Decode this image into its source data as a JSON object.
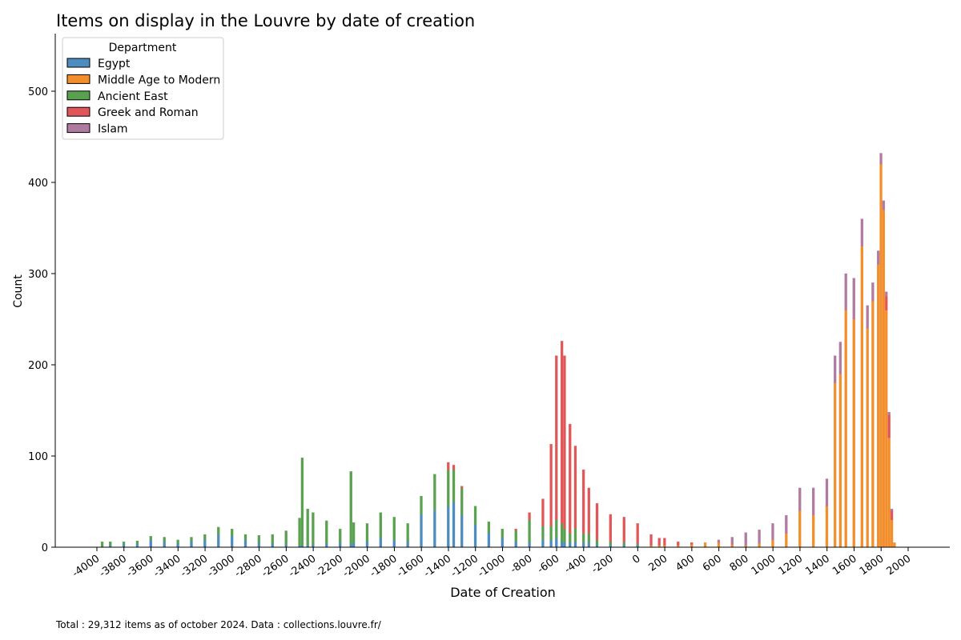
{
  "chart_data": {
    "type": "bar",
    "stacked": true,
    "title": "Items on display in the Louvre by date of creation",
    "xlabel": "Date of Creation",
    "ylabel": "Count",
    "footnote": "Total : 29,312 items as of october 2024. Data : collections.louvre.fr/",
    "xlim": [
      -4000,
      2000
    ],
    "ylim": [
      0,
      560
    ],
    "x_ticks": [
      -4000,
      -3800,
      -3600,
      -3400,
      -3200,
      -3000,
      -2800,
      -2600,
      -2400,
      -2200,
      -2000,
      -1800,
      -1600,
      -1400,
      -1200,
      -1000,
      -800,
      -600,
      -400,
      -200,
      0,
      200,
      400,
      600,
      800,
      1000,
      1200,
      1400,
      1600,
      1800,
      2000
    ],
    "x_tick_labels": [
      "-4000",
      "-3800",
      "-3600",
      "-3400",
      "-3200",
      "-3000",
      "-2800",
      "-2600",
      "-2400",
      "-2200",
      "-2000",
      "-1800",
      "-1600",
      "-1400",
      "-1200",
      "-1000",
      "-800",
      "-600",
      "-400",
      "-200",
      "0",
      "200",
      "400",
      "600",
      "800",
      "1000",
      "1200",
      "1400",
      "1600",
      "1800",
      "2000"
    ],
    "y_ticks": [
      0,
      100,
      200,
      300,
      400,
      500
    ],
    "y_tick_labels": [
      "0",
      "100",
      "200",
      "300",
      "400",
      "500"
    ],
    "grid": false,
    "legend": {
      "title": "Department",
      "placement": "top-left",
      "entries": [
        "Egypt",
        "Middle Age to Modern",
        "Ancient East",
        "Greek and Roman",
        "Islam"
      ]
    },
    "bin_width": 20,
    "x": [
      -3960,
      -3900,
      -3800,
      -3700,
      -3600,
      -3500,
      -3400,
      -3300,
      -3200,
      -3100,
      -3000,
      -2900,
      -2800,
      -2700,
      -2600,
      -2500,
      -2480,
      -2440,
      -2400,
      -2300,
      -2200,
      -2120,
      -2100,
      -2000,
      -1900,
      -1800,
      -1700,
      -1600,
      -1500,
      -1400,
      -1360,
      -1300,
      -1200,
      -1100,
      -1000,
      -900,
      -800,
      -700,
      -640,
      -600,
      -560,
      -540,
      -500,
      -460,
      -400,
      -360,
      -300,
      -200,
      -100,
      0,
      100,
      160,
      200,
      300,
      400,
      500,
      600,
      700,
      800,
      900,
      1000,
      1100,
      1200,
      1300,
      1400,
      1460,
      1500,
      1540,
      1600,
      1660,
      1700,
      1740,
      1780,
      1800,
      1820,
      1840,
      1860,
      1880,
      1900
    ],
    "series": [
      {
        "name": "Egypt",
        "color": "#4c8cbf",
        "values": [
          0,
          2,
          3,
          4,
          8,
          6,
          4,
          6,
          8,
          14,
          12,
          8,
          5,
          4,
          3,
          2,
          2,
          2,
          3,
          4,
          5,
          3,
          5,
          6,
          10,
          8,
          6,
          36,
          40,
          45,
          50,
          35,
          25,
          16,
          10,
          6,
          5,
          8,
          8,
          10,
          6,
          5,
          5,
          6,
          5,
          5,
          3,
          2,
          2,
          2,
          0,
          0,
          0,
          0,
          0,
          0,
          0,
          0,
          0,
          0,
          0,
          0,
          0,
          0,
          0,
          0,
          0,
          0,
          0,
          0,
          0,
          0,
          0,
          0,
          0,
          0,
          0,
          0,
          0
        ]
      },
      {
        "name": "Middle Age to Modern",
        "color": "#f28e2b",
        "values": [
          0,
          0,
          0,
          0,
          0,
          0,
          0,
          0,
          0,
          0,
          0,
          0,
          0,
          0,
          0,
          0,
          0,
          0,
          0,
          0,
          0,
          0,
          0,
          0,
          0,
          0,
          0,
          0,
          0,
          0,
          0,
          0,
          0,
          0,
          0,
          0,
          0,
          0,
          0,
          0,
          0,
          0,
          0,
          0,
          0,
          0,
          0,
          0,
          0,
          0,
          2,
          2,
          2,
          2,
          3,
          5,
          5,
          3,
          2,
          4,
          8,
          15,
          40,
          35,
          45,
          180,
          190,
          260,
          250,
          330,
          240,
          270,
          310,
          420,
          370,
          260,
          120,
          30,
          5
        ]
      },
      {
        "name": "Ancient East",
        "color": "#59a14f",
        "values": [
          6,
          4,
          3,
          3,
          4,
          5,
          4,
          5,
          6,
          8,
          8,
          6,
          8,
          10,
          15,
          30,
          96,
          40,
          35,
          25,
          15,
          80,
          22,
          20,
          28,
          25,
          20,
          20,
          40,
          40,
          35,
          30,
          20,
          12,
          10,
          12,
          25,
          15,
          15,
          20,
          20,
          15,
          10,
          15,
          10,
          10,
          5,
          4,
          3,
          2,
          0,
          0,
          0,
          0,
          0,
          0,
          0,
          0,
          0,
          0,
          0,
          0,
          0,
          0,
          0,
          0,
          0,
          0,
          0,
          0,
          0,
          0,
          0,
          0,
          0,
          0,
          0,
          0,
          0
        ]
      },
      {
        "name": "Greek and Roman",
        "color": "#e15759",
        "values": [
          0,
          0,
          0,
          0,
          0,
          0,
          0,
          0,
          0,
          0,
          0,
          0,
          0,
          0,
          0,
          0,
          0,
          0,
          0,
          0,
          0,
          0,
          0,
          0,
          0,
          0,
          0,
          0,
          0,
          8,
          5,
          2,
          0,
          0,
          0,
          2,
          8,
          30,
          90,
          180,
          200,
          190,
          120,
          90,
          70,
          50,
          40,
          30,
          28,
          22,
          12,
          8,
          8,
          4,
          2,
          0,
          0,
          0,
          0,
          0,
          0,
          0,
          0,
          0,
          0,
          0,
          0,
          0,
          0,
          0,
          0,
          0,
          0,
          0,
          0,
          15,
          25,
          10,
          0
        ]
      },
      {
        "name": "Islam",
        "color": "#b07aa1",
        "values": [
          0,
          0,
          0,
          0,
          0,
          0,
          0,
          0,
          0,
          0,
          0,
          0,
          0,
          0,
          0,
          0,
          0,
          0,
          0,
          0,
          0,
          0,
          0,
          0,
          0,
          0,
          0,
          0,
          0,
          0,
          0,
          0,
          0,
          0,
          0,
          0,
          0,
          0,
          0,
          0,
          0,
          0,
          0,
          0,
          0,
          0,
          0,
          0,
          0,
          0,
          0,
          0,
          0,
          0,
          0,
          0,
          3,
          8,
          14,
          15,
          18,
          20,
          25,
          30,
          30,
          30,
          35,
          40,
          45,
          30,
          25,
          20,
          15,
          12,
          10,
          5,
          3,
          2,
          0
        ]
      }
    ]
  }
}
